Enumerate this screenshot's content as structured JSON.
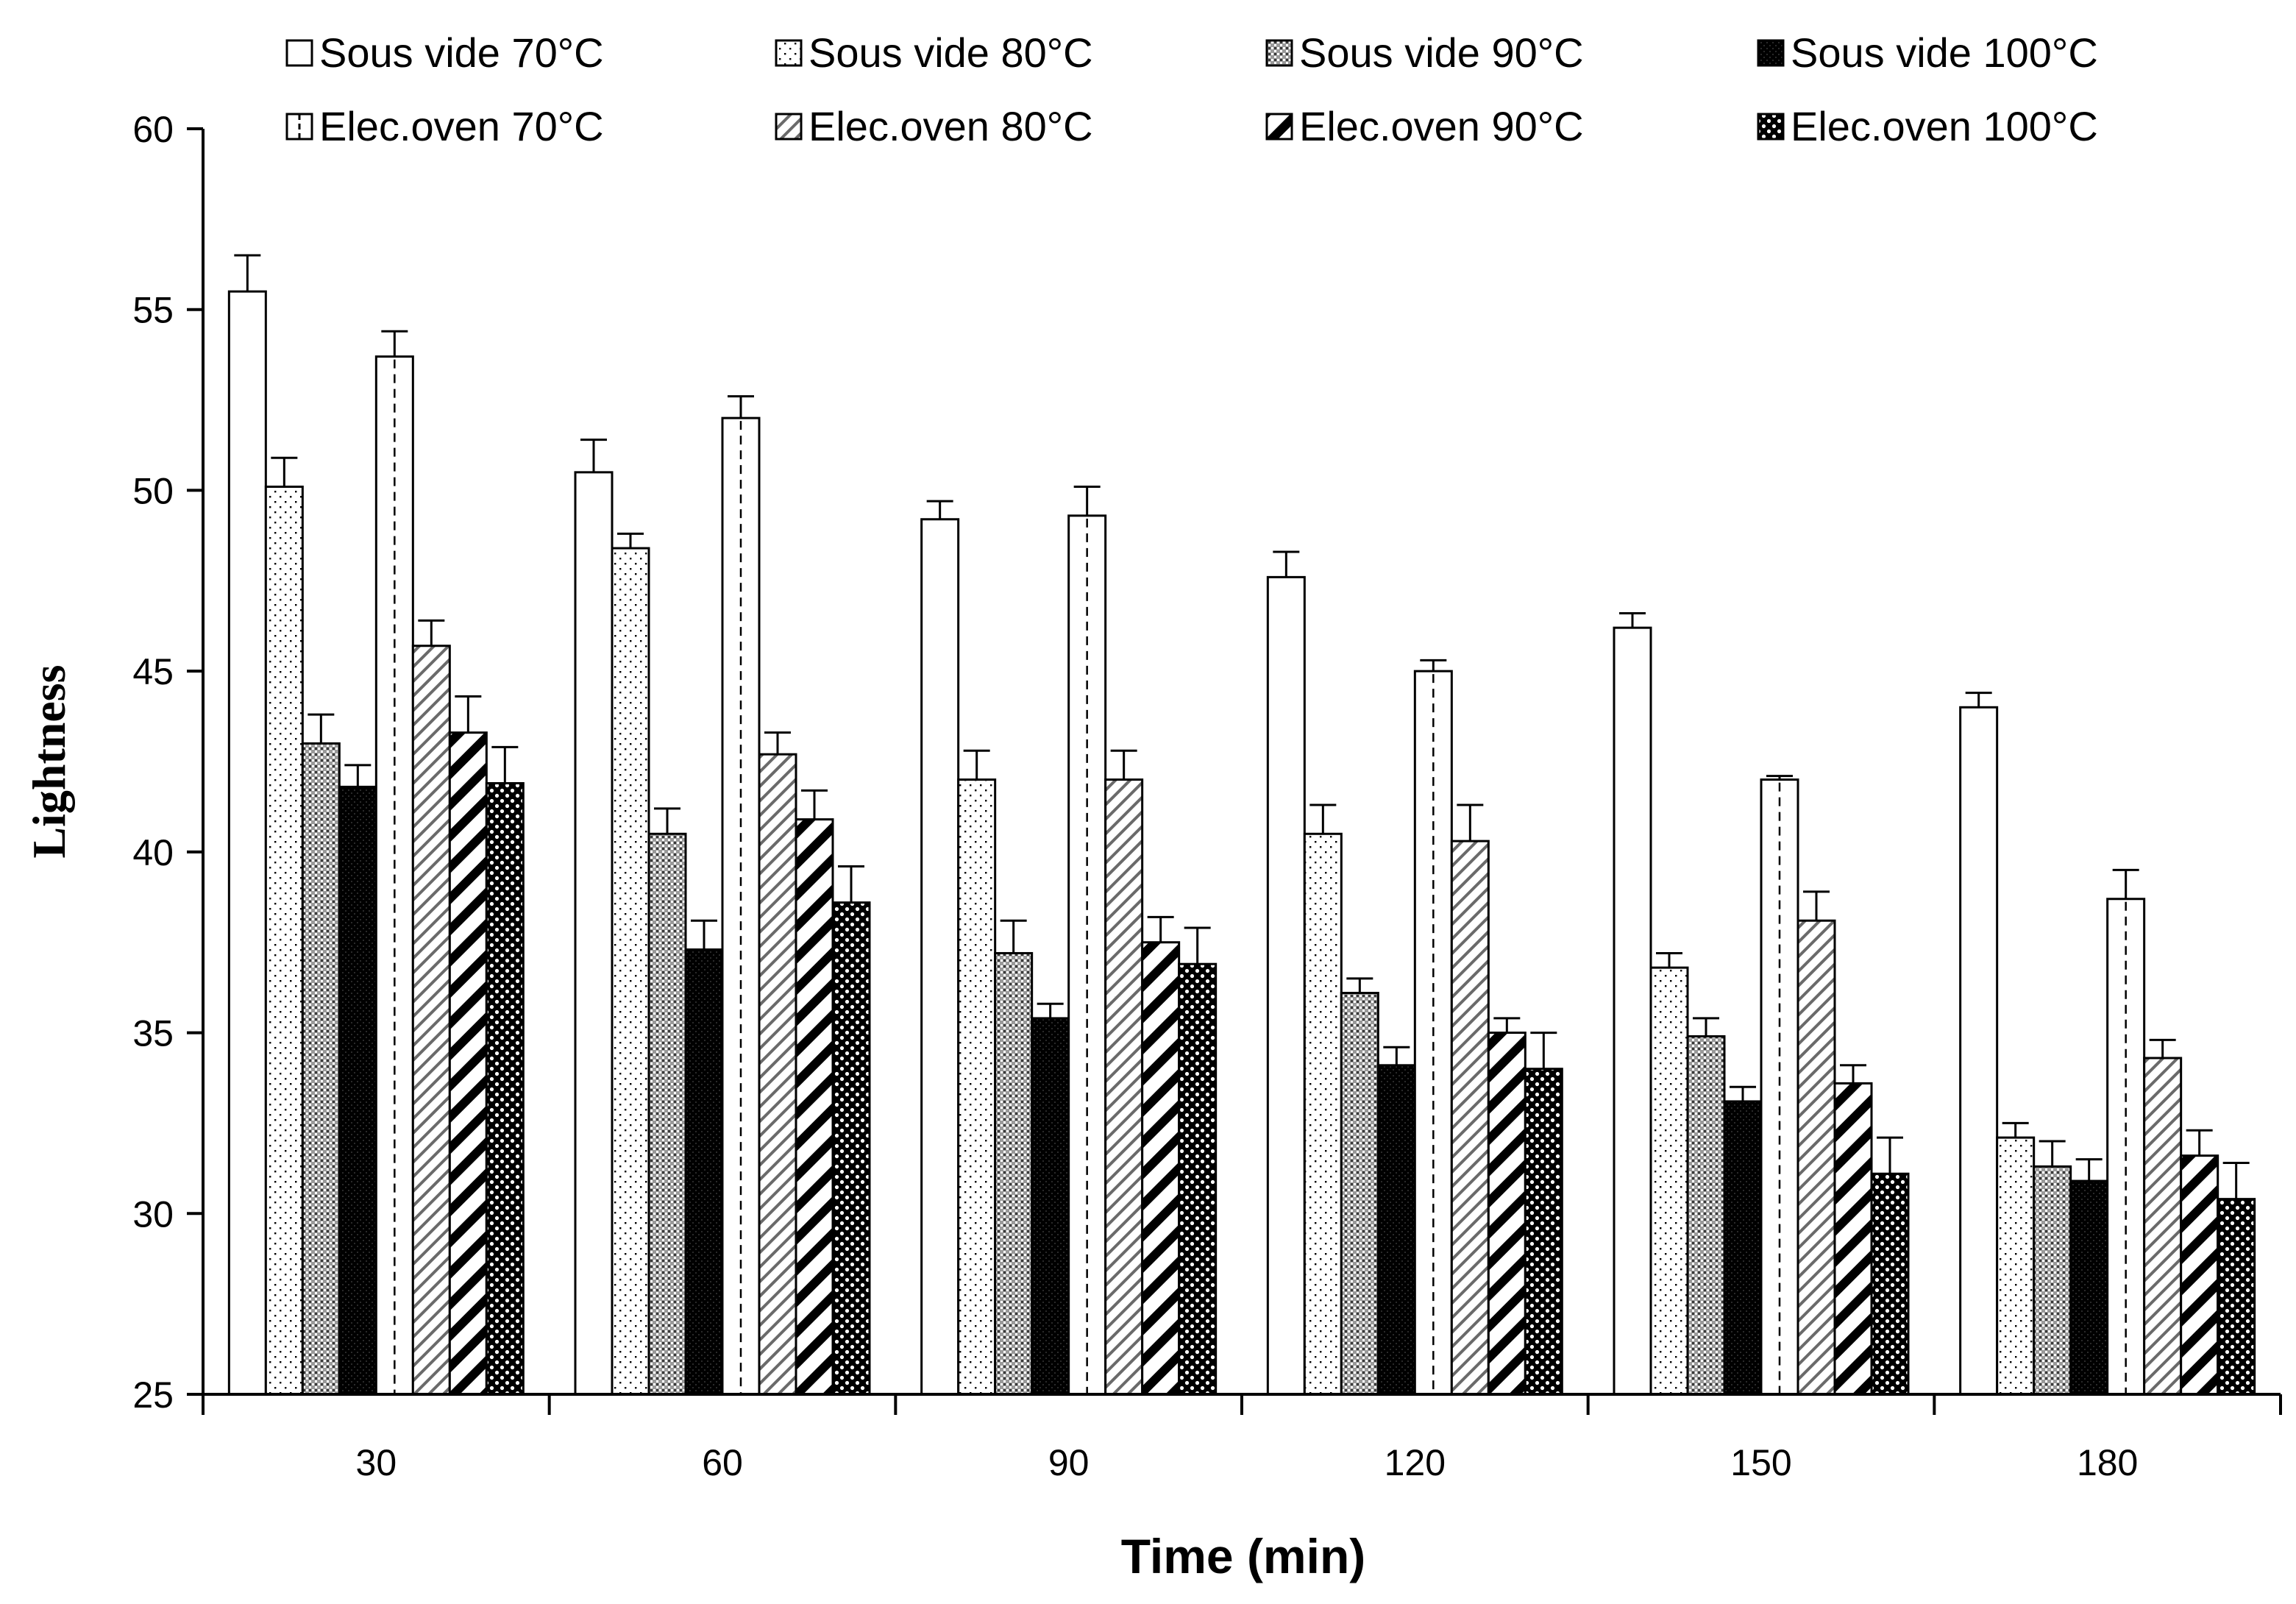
{
  "chart_data": {
    "type": "bar",
    "title": "",
    "xlabel": "Time (min)",
    "ylabel": "Lightness",
    "ylim": [
      25,
      60
    ],
    "yticks": [
      25,
      30,
      35,
      40,
      45,
      50,
      55,
      60
    ],
    "categories": [
      "30",
      "60",
      "90",
      "120",
      "150",
      "180"
    ],
    "grid": false,
    "legend_position": "top",
    "error_bars": true,
    "series": [
      {
        "name": "Sous vide 70°C",
        "pattern": "blank",
        "values": [
          55.5,
          50.5,
          49.2,
          47.6,
          46.2,
          44.0
        ],
        "errors": [
          1.0,
          0.9,
          0.5,
          0.7,
          0.4,
          0.4
        ]
      },
      {
        "name": "Sous vide 80°C",
        "pattern": "dots-sparse",
        "values": [
          50.1,
          48.4,
          42.0,
          40.5,
          36.8,
          32.1
        ],
        "errors": [
          0.8,
          0.4,
          0.8,
          0.8,
          0.4,
          0.4
        ]
      },
      {
        "name": "Sous vide 90°C",
        "pattern": "dots-dense",
        "values": [
          43.0,
          40.5,
          37.2,
          36.1,
          34.9,
          31.3
        ],
        "errors": [
          0.8,
          0.7,
          0.9,
          0.4,
          0.5,
          0.7
        ]
      },
      {
        "name": "Sous vide 100°C",
        "pattern": "black",
        "values": [
          41.8,
          37.3,
          35.4,
          34.1,
          33.1,
          30.9
        ],
        "errors": [
          0.6,
          0.8,
          0.4,
          0.5,
          0.4,
          0.6
        ]
      },
      {
        "name": "Elec.oven 70°C",
        "pattern": "dashed-center",
        "values": [
          53.7,
          52.0,
          49.3,
          45.0,
          42.0,
          38.7
        ],
        "errors": [
          0.7,
          0.6,
          0.8,
          0.3,
          0.1,
          0.8
        ]
      },
      {
        "name": "Elec.oven 80°C",
        "pattern": "hatch-thin",
        "values": [
          45.7,
          42.7,
          42.0,
          40.3,
          38.1,
          34.3
        ],
        "errors": [
          0.7,
          0.6,
          0.8,
          1.0,
          0.8,
          0.5
        ]
      },
      {
        "name": "Elec.oven 90°C",
        "pattern": "hatch-thick",
        "values": [
          43.3,
          40.9,
          37.5,
          35.0,
          33.6,
          31.6
        ],
        "errors": [
          1.0,
          0.8,
          0.7,
          0.4,
          0.5,
          0.7
        ]
      },
      {
        "name": "Elec.oven 100°C",
        "pattern": "checker",
        "values": [
          41.9,
          38.6,
          36.9,
          34.0,
          31.1,
          30.4
        ],
        "errors": [
          1.0,
          1.0,
          1.0,
          1.0,
          1.0,
          1.0
        ]
      }
    ]
  }
}
